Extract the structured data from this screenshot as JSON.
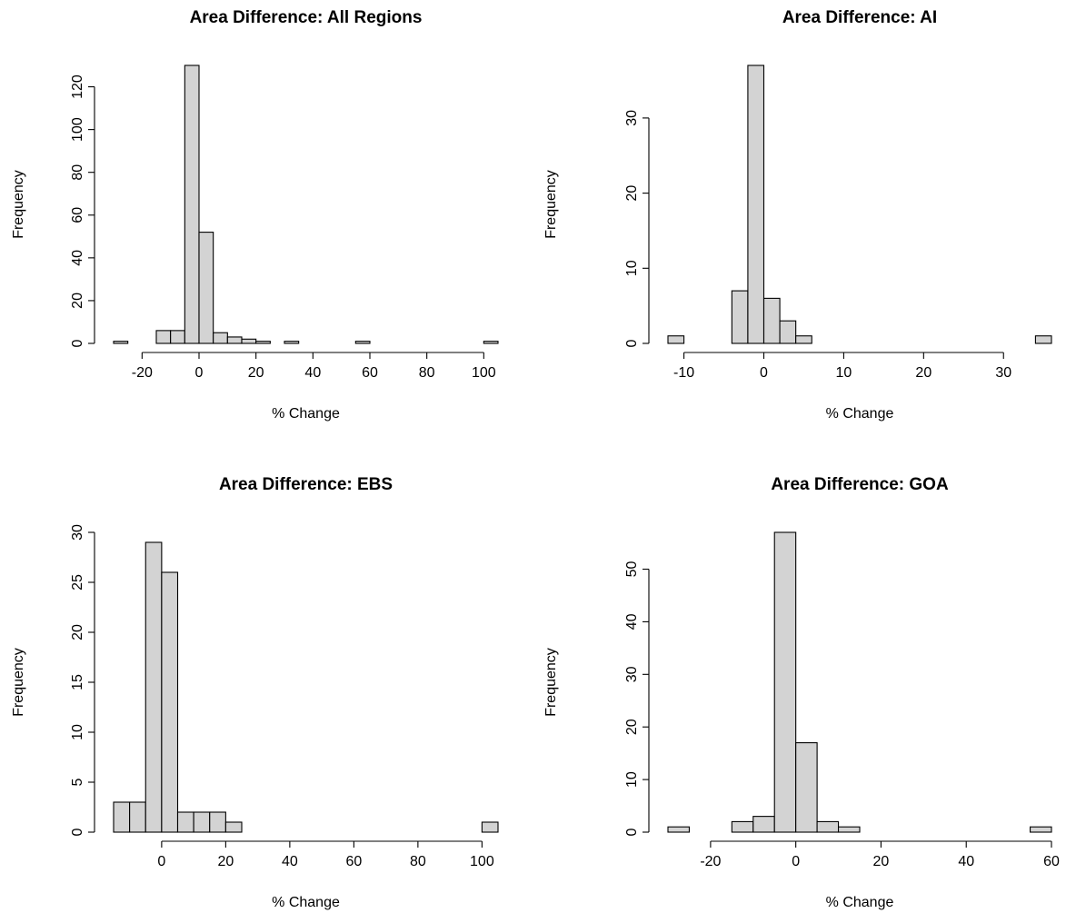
{
  "chart_data": [
    {
      "type": "bar",
      "title": "Area Difference: All Regions",
      "xlabel": "% Change",
      "ylabel": "Frequency",
      "xlim": [
        -30,
        105
      ],
      "ylim": [
        0,
        130
      ],
      "xticks": [
        -20,
        0,
        20,
        40,
        60,
        80,
        100
      ],
      "yticks": [
        0,
        20,
        40,
        60,
        80,
        100,
        120
      ],
      "bins": [
        {
          "x0": -30,
          "x1": -25,
          "count": 1
        },
        {
          "x0": -25,
          "x1": -20,
          "count": 0
        },
        {
          "x0": -20,
          "x1": -15,
          "count": 0
        },
        {
          "x0": -15,
          "x1": -10,
          "count": 6
        },
        {
          "x0": -10,
          "x1": -5,
          "count": 6
        },
        {
          "x0": -5,
          "x1": 0,
          "count": 130
        },
        {
          "x0": 0,
          "x1": 5,
          "count": 52
        },
        {
          "x0": 5,
          "x1": 10,
          "count": 5
        },
        {
          "x0": 10,
          "x1": 15,
          "count": 3
        },
        {
          "x0": 15,
          "x1": 20,
          "count": 2
        },
        {
          "x0": 20,
          "x1": 25,
          "count": 1
        },
        {
          "x0": 25,
          "x1": 30,
          "count": 0
        },
        {
          "x0": 30,
          "x1": 35,
          "count": 1
        },
        {
          "x0": 35,
          "x1": 40,
          "count": 0
        },
        {
          "x0": 40,
          "x1": 45,
          "count": 0
        },
        {
          "x0": 45,
          "x1": 50,
          "count": 0
        },
        {
          "x0": 50,
          "x1": 55,
          "count": 0
        },
        {
          "x0": 55,
          "x1": 60,
          "count": 1
        },
        {
          "x0": 60,
          "x1": 65,
          "count": 0
        },
        {
          "x0": 65,
          "x1": 70,
          "count": 0
        },
        {
          "x0": 70,
          "x1": 75,
          "count": 0
        },
        {
          "x0": 75,
          "x1": 80,
          "count": 0
        },
        {
          "x0": 80,
          "x1": 85,
          "count": 0
        },
        {
          "x0": 85,
          "x1": 90,
          "count": 0
        },
        {
          "x0": 90,
          "x1": 95,
          "count": 0
        },
        {
          "x0": 95,
          "x1": 100,
          "count": 0
        },
        {
          "x0": 100,
          "x1": 105,
          "count": 1
        }
      ]
    },
    {
      "type": "bar",
      "title": "Area Difference: AI",
      "xlabel": "% Change",
      "ylabel": "Frequency",
      "xlim": [
        -12,
        36
      ],
      "ylim": [
        0,
        37
      ],
      "xticks": [
        -10,
        0,
        10,
        20,
        30
      ],
      "yticks": [
        0,
        10,
        20,
        30
      ],
      "bins": [
        {
          "x0": -12,
          "x1": -10,
          "count": 1
        },
        {
          "x0": -10,
          "x1": -8,
          "count": 0
        },
        {
          "x0": -8,
          "x1": -6,
          "count": 0
        },
        {
          "x0": -6,
          "x1": -4,
          "count": 0
        },
        {
          "x0": -4,
          "x1": -2,
          "count": 7
        },
        {
          "x0": -2,
          "x1": 0,
          "count": 37
        },
        {
          "x0": 0,
          "x1": 2,
          "count": 6
        },
        {
          "x0": 2,
          "x1": 4,
          "count": 3
        },
        {
          "x0": 4,
          "x1": 6,
          "count": 1
        },
        {
          "x0": 6,
          "x1": 8,
          "count": 0
        },
        {
          "x0": 8,
          "x1": 10,
          "count": 0
        },
        {
          "x0": 10,
          "x1": 12,
          "count": 0
        },
        {
          "x0": 12,
          "x1": 14,
          "count": 0
        },
        {
          "x0": 14,
          "x1": 16,
          "count": 0
        },
        {
          "x0": 16,
          "x1": 18,
          "count": 0
        },
        {
          "x0": 18,
          "x1": 20,
          "count": 0
        },
        {
          "x0": 20,
          "x1": 22,
          "count": 0
        },
        {
          "x0": 22,
          "x1": 24,
          "count": 0
        },
        {
          "x0": 24,
          "x1": 26,
          "count": 0
        },
        {
          "x0": 26,
          "x1": 28,
          "count": 0
        },
        {
          "x0": 28,
          "x1": 30,
          "count": 0
        },
        {
          "x0": 30,
          "x1": 32,
          "count": 0
        },
        {
          "x0": 32,
          "x1": 34,
          "count": 0
        },
        {
          "x0": 34,
          "x1": 36,
          "count": 1
        }
      ]
    },
    {
      "type": "bar",
      "title": "Area Difference: EBS",
      "xlabel": "% Change",
      "ylabel": "Frequency",
      "xlim": [
        -15,
        105
      ],
      "ylim": [
        0,
        30
      ],
      "xticks": [
        0,
        20,
        40,
        60,
        80,
        100
      ],
      "yticks": [
        0,
        5,
        10,
        15,
        20,
        25,
        30
      ],
      "bins": [
        {
          "x0": -15,
          "x1": -10,
          "count": 3
        },
        {
          "x0": -10,
          "x1": -5,
          "count": 3
        },
        {
          "x0": -5,
          "x1": 0,
          "count": 29
        },
        {
          "x0": 0,
          "x1": 5,
          "count": 26
        },
        {
          "x0": 5,
          "x1": 10,
          "count": 2
        },
        {
          "x0": 10,
          "x1": 15,
          "count": 2
        },
        {
          "x0": 15,
          "x1": 20,
          "count": 2
        },
        {
          "x0": 20,
          "x1": 25,
          "count": 1
        },
        {
          "x0": 25,
          "x1": 30,
          "count": 0
        },
        {
          "x0": 30,
          "x1": 35,
          "count": 0
        },
        {
          "x0": 35,
          "x1": 40,
          "count": 0
        },
        {
          "x0": 40,
          "x1": 45,
          "count": 0
        },
        {
          "x0": 45,
          "x1": 50,
          "count": 0
        },
        {
          "x0": 50,
          "x1": 55,
          "count": 0
        },
        {
          "x0": 55,
          "x1": 60,
          "count": 0
        },
        {
          "x0": 60,
          "x1": 65,
          "count": 0
        },
        {
          "x0": 65,
          "x1": 70,
          "count": 0
        },
        {
          "x0": 70,
          "x1": 75,
          "count": 0
        },
        {
          "x0": 75,
          "x1": 80,
          "count": 0
        },
        {
          "x0": 80,
          "x1": 85,
          "count": 0
        },
        {
          "x0": 85,
          "x1": 90,
          "count": 0
        },
        {
          "x0": 90,
          "x1": 95,
          "count": 0
        },
        {
          "x0": 95,
          "x1": 100,
          "count": 0
        },
        {
          "x0": 100,
          "x1": 105,
          "count": 1
        }
      ]
    },
    {
      "type": "bar",
      "title": "Area Difference: GOA",
      "xlabel": "% Change",
      "ylabel": "Frequency",
      "xlim": [
        -30,
        60
      ],
      "ylim": [
        0,
        57
      ],
      "xticks": [
        -20,
        0,
        20,
        40,
        60
      ],
      "yticks": [
        0,
        10,
        20,
        30,
        40,
        50
      ],
      "bins": [
        {
          "x0": -30,
          "x1": -25,
          "count": 1
        },
        {
          "x0": -25,
          "x1": -20,
          "count": 0
        },
        {
          "x0": -20,
          "x1": -15,
          "count": 0
        },
        {
          "x0": -15,
          "x1": -10,
          "count": 2
        },
        {
          "x0": -10,
          "x1": -5,
          "count": 3
        },
        {
          "x0": -5,
          "x1": 0,
          "count": 57
        },
        {
          "x0": 0,
          "x1": 5,
          "count": 17
        },
        {
          "x0": 5,
          "x1": 10,
          "count": 2
        },
        {
          "x0": 10,
          "x1": 15,
          "count": 1
        },
        {
          "x0": 15,
          "x1": 20,
          "count": 0
        },
        {
          "x0": 20,
          "x1": 25,
          "count": 0
        },
        {
          "x0": 25,
          "x1": 30,
          "count": 0
        },
        {
          "x0": 30,
          "x1": 35,
          "count": 0
        },
        {
          "x0": 35,
          "x1": 40,
          "count": 0
        },
        {
          "x0": 40,
          "x1": 45,
          "count": 0
        },
        {
          "x0": 45,
          "x1": 50,
          "count": 0
        },
        {
          "x0": 50,
          "x1": 55,
          "count": 0
        },
        {
          "x0": 55,
          "x1": 60,
          "count": 1
        }
      ]
    }
  ]
}
